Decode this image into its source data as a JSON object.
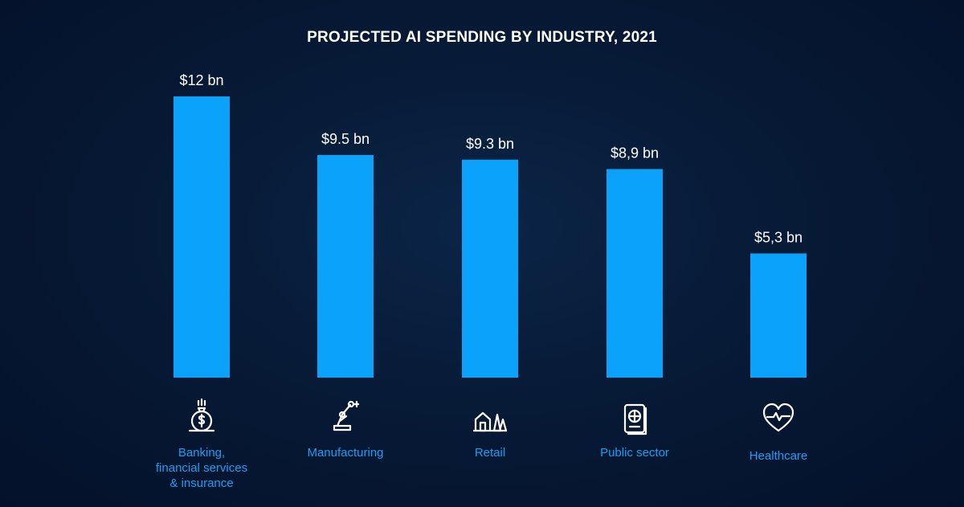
{
  "chart_data": {
    "type": "bar",
    "title": "PROJECTED AI SPENDING BY INDUSTRY, 2021",
    "categories": [
      "Banking,\nfinancial services\n& insurance",
      "Manufacturing",
      "Retail",
      "Public sector",
      "Healthcare"
    ],
    "values": [
      12,
      9.5,
      9.3,
      8.9,
      5.3
    ],
    "value_labels": [
      "$12 bn",
      "$9.5 bn",
      "$9.3 bn",
      "$8,9 bn",
      "$5,3 bn"
    ],
    "icons": [
      "money-bag-icon",
      "robot-arm-icon",
      "store-trees-icon",
      "passport-icon",
      "heart-pulse-icon"
    ],
    "xlabel": "",
    "ylabel": "",
    "grid": false,
    "legend": "none",
    "colors": {
      "bar": "#0aa2fb",
      "category_text": "#1a9ff5",
      "value_text": "#ffffff",
      "background": "#071a36"
    }
  }
}
